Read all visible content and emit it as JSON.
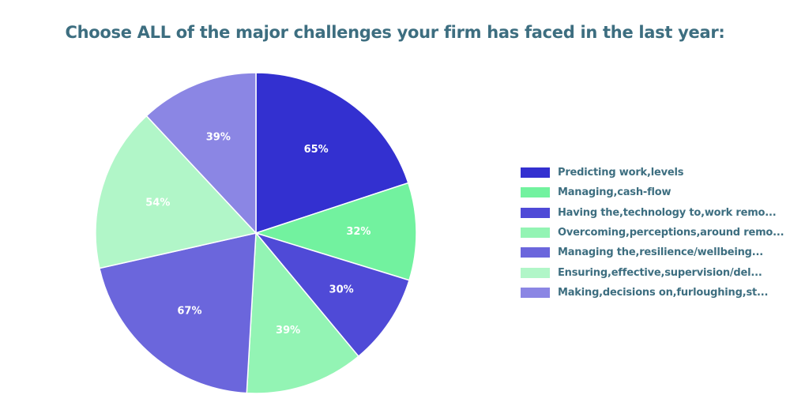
{
  "chart_data": {
    "type": "pie",
    "title": "Choose ALL of the major challenges your firm has faced in the last year:",
    "slices": [
      {
        "label": "Predicting work,levels",
        "value": 65,
        "display": "65%",
        "color": "#3330d0"
      },
      {
        "label": "Managing,cash-flow",
        "value": 32,
        "display": "32%",
        "color": "#72f29f"
      },
      {
        "label": "Having the,technology to,work remo...",
        "value": 30,
        "display": "30%",
        "color": "#4f4ad7"
      },
      {
        "label": "Overcoming,perceptions,around remo...",
        "value": 39,
        "display": "39%",
        "color": "#93f4b4"
      },
      {
        "label": "Managing the,resilience/wellbeing...",
        "value": 67,
        "display": "67%",
        "color": "#6b66dc"
      },
      {
        "label": "Ensuring,effective,supervision/del...",
        "value": 54,
        "display": "54%",
        "color": "#b1f6c8"
      },
      {
        "label": "Making,decisions on,furloughing,st...",
        "value": 39,
        "display": "39%",
        "color": "#8b86e4"
      }
    ],
    "legend_position": "right",
    "start": "12 o'clock",
    "direction": "clockwise"
  }
}
